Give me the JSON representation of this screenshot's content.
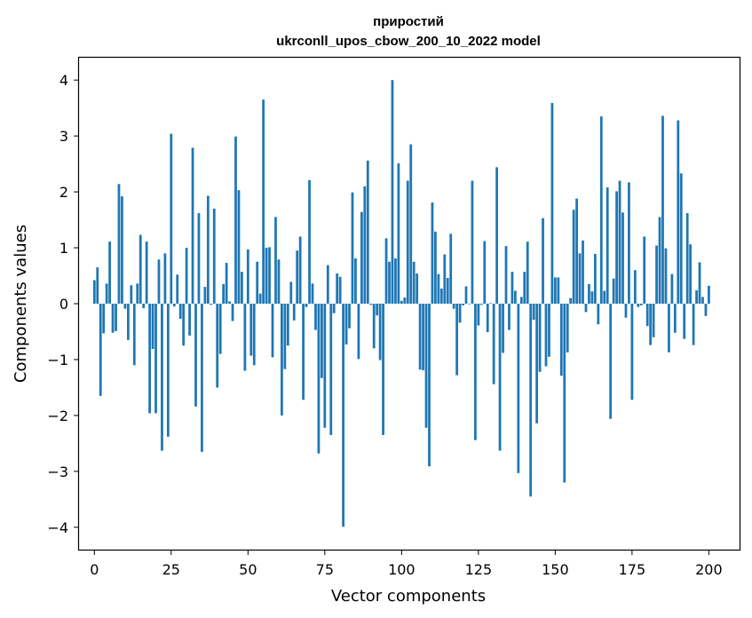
{
  "chart_data": {
    "type": "bar",
    "title": "приростий",
    "subtitle": "ukrconll_upos_cbow_200_10_2022 model",
    "xlabel": "Vector components",
    "ylabel": "Components values",
    "xlim": [
      -5,
      210
    ],
    "ylim": [
      -4.4,
      4.4
    ],
    "xticks": [
      0,
      25,
      50,
      75,
      100,
      125,
      150,
      175,
      200
    ],
    "yticks": [
      -4,
      -3,
      -2,
      -1,
      0,
      1,
      2,
      3,
      4
    ],
    "bar_color": "#1f77b4",
    "grid": false,
    "values": [
      0.42,
      0.65,
      -1.65,
      -0.53,
      0.36,
      1.11,
      -0.52,
      -0.49,
      2.14,
      1.92,
      -0.09,
      -0.65,
      0.33,
      -1.1,
      0.36,
      1.23,
      -0.08,
      1.11,
      -1.96,
      -0.81,
      -1.96,
      0.79,
      -2.63,
      0.9,
      -2.38,
      3.04,
      -0.05,
      0.52,
      -0.27,
      -0.75,
      1.0,
      -0.57,
      2.79,
      -1.84,
      1.62,
      -2.65,
      0.3,
      1.93,
      -0.02,
      1.7,
      -1.5,
      -0.9,
      0.35,
      0.73,
      0.04,
      -0.31,
      2.99,
      2.03,
      0.57,
      -1.2,
      0.97,
      -0.93,
      -1.1,
      0.75,
      0.18,
      3.65,
      1.0,
      1.01,
      -0.96,
      1.55,
      0.79,
      -2.0,
      -1.17,
      -0.75,
      0.39,
      -0.3,
      0.95,
      1.2,
      -1.72,
      -0.06,
      2.21,
      0.36,
      -0.47,
      -2.68,
      -1.33,
      -2.22,
      0.69,
      -2.35,
      -0.17,
      0.54,
      0.48,
      -3.99,
      -0.73,
      -0.44,
      1.99,
      0.81,
      -0.99,
      1.64,
      2.1,
      2.56,
      -0.02,
      -0.8,
      -0.21,
      -1.01,
      -2.35,
      1.17,
      0.75,
      4.0,
      0.81,
      2.51,
      0.05,
      0.11,
      2.2,
      2.85,
      0.75,
      0.54,
      -1.18,
      -1.19,
      -2.22,
      -2.91,
      1.81,
      1.29,
      0.53,
      0.27,
      0.88,
      0.46,
      1.25,
      -0.09,
      -1.28,
      -0.34,
      -0.03,
      0.31,
      -0.01,
      2.2,
      -2.44,
      -0.39,
      -0.02,
      1.12,
      -0.51,
      0.01,
      -1.44,
      2.44,
      -2.63,
      -0.88,
      1.03,
      -0.47,
      0.57,
      0.23,
      -3.03,
      0.12,
      0.57,
      1.11,
      -3.45,
      -0.29,
      -2.14,
      -1.22,
      1.53,
      -1.12,
      -0.95,
      3.59,
      0.47,
      0.47,
      -1.29,
      -3.2,
      -0.87,
      0.1,
      1.68,
      1.88,
      0.9,
      1.13,
      -0.15,
      0.35,
      0.22,
      0.89,
      -0.37,
      3.35,
      0.23,
      2.08,
      -2.06,
      0.45,
      2.01,
      2.2,
      1.63,
      -0.25,
      2.17,
      -1.72,
      0.6,
      -0.06,
      -0.03,
      1.2,
      -0.4,
      -0.74,
      -0.6,
      1.04,
      1.55,
      3.36,
      0.99,
      -0.87,
      0.53,
      -0.52,
      3.28,
      2.33,
      -0.63,
      1.62,
      1.06,
      -0.74,
      0.24,
      0.74,
      0.12,
      -0.22,
      0.32
    ]
  }
}
